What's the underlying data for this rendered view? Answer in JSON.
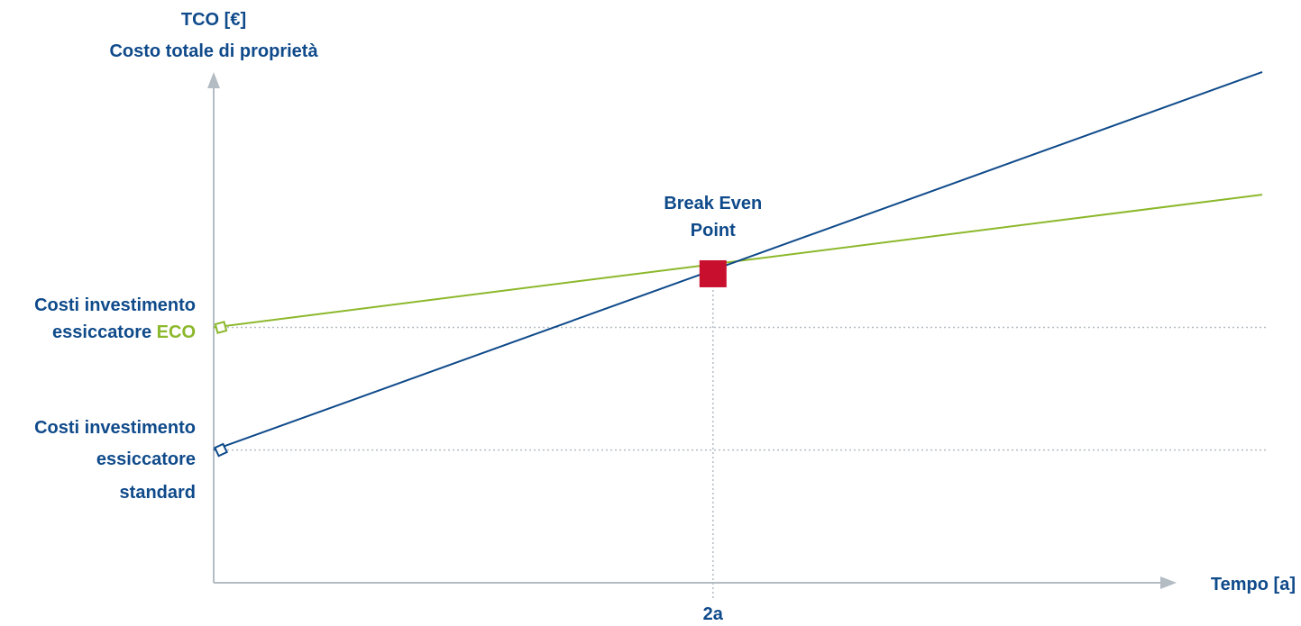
{
  "chart_data": {
    "type": "line",
    "ylabel_line1": "TCO [€]",
    "ylabel_line2": "Costo totale di proprietà",
    "xlabel": "Tempo [a]",
    "x_ticks": [
      {
        "x": 2,
        "label": "2a"
      }
    ],
    "xlim": [
      0,
      4.2
    ],
    "ylim": [
      0,
      10
    ],
    "series": [
      {
        "key": "eco",
        "color": "#8cb82b",
        "points": [
          [
            0,
            5.0
          ],
          [
            4.2,
            7.6
          ]
        ]
      },
      {
        "key": "standard",
        "color": "#0f4a8a",
        "points": [
          [
            0,
            2.6
          ],
          [
            4.2,
            10.0
          ]
        ]
      }
    ],
    "annotations": {
      "eco_investment": {
        "y": 5.0,
        "line1": "Costi investimento",
        "line2_prefix": "essiccatore ",
        "line2_highlight": "ECO"
      },
      "standard_investment": {
        "y": 2.6,
        "line1": "Costi investimento",
        "line2": "essiccatore",
        "line3": "standard"
      },
      "break_even": {
        "x": 2,
        "y": 6.05,
        "line1": "Break Even",
        "line2": "Point",
        "color": "#c8102e"
      }
    },
    "colors": {
      "axis": "#b3bcc3",
      "guide": "#b3bcc3",
      "label": "#0f4a8a",
      "eco": "#8cb82b",
      "standard": "#0f4a8a",
      "break_even": "#c8102e"
    },
    "grid": false,
    "legend": "none"
  }
}
